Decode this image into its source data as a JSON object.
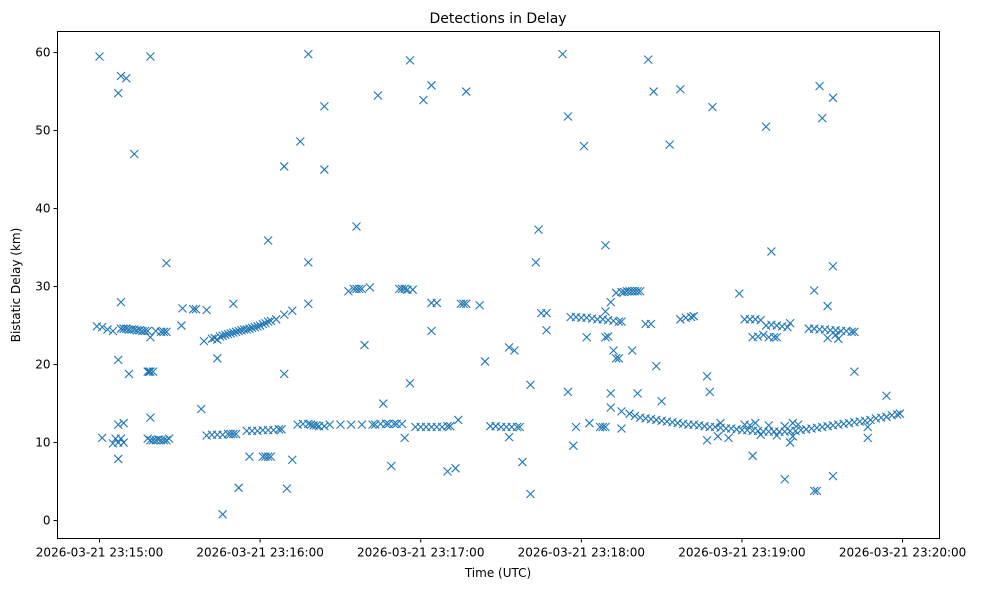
{
  "chart_data": {
    "type": "scatter",
    "title": "Detections in Delay",
    "xlabel": "Time (UTC)",
    "ylabel": "Bistatic Delay (km)",
    "x_units": "seconds since 2026-03-21 23:15:00",
    "xlim": [
      -15.7,
      313.8
    ],
    "ylim": [
      -2.3,
      62.7
    ],
    "grid": false,
    "marker": "x",
    "color": "#1f77b4",
    "xticks": [
      {
        "value": 0,
        "label": "2026-03-21 23:15:00"
      },
      {
        "value": 60,
        "label": "2026-03-21 23:16:00"
      },
      {
        "value": 120,
        "label": "2026-03-21 23:17:00"
      },
      {
        "value": 180,
        "label": "2026-03-21 23:18:00"
      },
      {
        "value": 240,
        "label": "2026-03-21 23:19:00"
      },
      {
        "value": 300,
        "label": "2026-03-21 23:20:00"
      }
    ],
    "yticks": [
      {
        "value": 0,
        "label": "0"
      },
      {
        "value": 10,
        "label": "10"
      },
      {
        "value": 20,
        "label": "20"
      },
      {
        "value": 30,
        "label": "30"
      },
      {
        "value": 40,
        "label": "40"
      },
      {
        "value": 50,
        "label": "50"
      },
      {
        "value": 60,
        "label": "60"
      }
    ],
    "points": [
      [
        0,
        59.5
      ],
      [
        7,
        54.8
      ],
      [
        8,
        57
      ],
      [
        10,
        56.7
      ],
      [
        13,
        47
      ],
      [
        19,
        59.5
      ],
      [
        78,
        59.8
      ],
      [
        69,
        45.4
      ],
      [
        75,
        48.6
      ],
      [
        78,
        33.1
      ],
      [
        84,
        53.1
      ],
      [
        84,
        45
      ],
      [
        104,
        54.5
      ],
      [
        96,
        37.7
      ],
      [
        116,
        59
      ],
      [
        121,
        53.9
      ],
      [
        124,
        55.8
      ],
      [
        137,
        55
      ],
      [
        173,
        59.8
      ],
      [
        175,
        51.8
      ],
      [
        181,
        48
      ],
      [
        205,
        59.1
      ],
      [
        207,
        55
      ],
      [
        213,
        48.2
      ],
      [
        217,
        55.3
      ],
      [
        229,
        53
      ],
      [
        249,
        50.5
      ],
      [
        269,
        55.7
      ],
      [
        270,
        51.6
      ],
      [
        274,
        54.2
      ],
      [
        25,
        33
      ],
      [
        63,
        35.9
      ],
      [
        164,
        37.3
      ],
      [
        163,
        33.1
      ],
      [
        189,
        35.3
      ],
      [
        251,
        34.5
      ],
      [
        274,
        32.6
      ],
      [
        272,
        27.5
      ],
      [
        -1,
        24.9
      ],
      [
        1,
        24.8
      ],
      [
        3,
        24.5
      ],
      [
        5,
        24.3
      ],
      [
        8,
        24.6
      ],
      [
        9,
        24.6
      ],
      [
        10,
        24.6
      ],
      [
        11,
        24.5
      ],
      [
        12,
        24.5
      ],
      [
        13,
        24.5
      ],
      [
        14,
        24.4
      ],
      [
        15,
        24.4
      ],
      [
        16,
        24.3
      ],
      [
        17,
        24.3
      ],
      [
        18,
        24.3
      ],
      [
        21,
        24.3
      ],
      [
        23,
        24.2
      ],
      [
        24,
        24.2
      ],
      [
        25,
        24.2
      ],
      [
        8,
        28
      ],
      [
        7,
        20.6
      ],
      [
        11,
        18.8
      ],
      [
        19,
        23.5
      ],
      [
        18,
        19.1
      ],
      [
        18.5,
        19.1
      ],
      [
        19,
        19.1
      ],
      [
        20,
        19.1
      ],
      [
        1,
        10.6
      ],
      [
        5,
        9.9
      ],
      [
        6,
        10.5
      ],
      [
        7,
        10
      ],
      [
        7,
        12.3
      ],
      [
        8,
        10.5
      ],
      [
        9,
        12.5
      ],
      [
        9,
        10
      ],
      [
        7,
        7.9
      ],
      [
        18,
        10.5
      ],
      [
        19,
        13.2
      ],
      [
        19,
        10.3
      ],
      [
        20,
        10.3
      ],
      [
        21,
        10.3
      ],
      [
        22,
        10.4
      ],
      [
        23,
        10.3
      ],
      [
        24,
        10.3
      ],
      [
        25,
        10.3
      ],
      [
        26,
        10.5
      ],
      [
        31,
        27.2
      ],
      [
        30.6,
        25
      ],
      [
        35,
        27.1
      ],
      [
        36,
        27.1
      ],
      [
        40,
        27
      ],
      [
        38,
        14.3
      ],
      [
        39,
        23
      ],
      [
        42,
        23.3
      ],
      [
        43,
        23.4
      ],
      [
        44,
        23.2
      ],
      [
        45,
        23.6
      ],
      [
        46,
        23.7
      ],
      [
        47,
        23.8
      ],
      [
        48,
        23.9
      ],
      [
        49,
        24
      ],
      [
        50,
        24.1
      ],
      [
        51,
        24.2
      ],
      [
        52,
        24.3
      ],
      [
        53,
        24.4
      ],
      [
        54,
        24.5
      ],
      [
        55,
        24.5
      ],
      [
        56,
        24.6
      ],
      [
        57,
        24.7
      ],
      [
        58,
        24.8
      ],
      [
        59,
        24.9
      ],
      [
        60,
        25
      ],
      [
        61,
        25.2
      ],
      [
        62,
        25.3
      ],
      [
        63,
        25.5
      ],
      [
        64,
        25.6
      ],
      [
        66,
        25.8
      ],
      [
        69,
        26.4
      ],
      [
        72,
        26.9
      ],
      [
        78,
        27.8
      ],
      [
        50,
        27.8
      ],
      [
        44,
        20.8
      ],
      [
        40,
        10.9
      ],
      [
        42,
        11
      ],
      [
        44,
        11
      ],
      [
        46,
        11
      ],
      [
        48,
        11.1
      ],
      [
        49,
        11.1
      ],
      [
        50,
        11.1
      ],
      [
        51,
        11.1
      ],
      [
        55,
        11.5
      ],
      [
        57,
        11.5
      ],
      [
        59,
        11.5
      ],
      [
        61,
        11.6
      ],
      [
        63,
        11.6
      ],
      [
        65,
        11.6
      ],
      [
        67,
        11.7
      ],
      [
        68,
        11.7
      ],
      [
        56,
        8.2
      ],
      [
        61,
        8.2
      ],
      [
        62,
        8.2
      ],
      [
        63,
        8.2
      ],
      [
        64,
        8.2
      ],
      [
        46,
        0.8
      ],
      [
        52,
        4.2
      ],
      [
        70,
        4.1
      ],
      [
        72,
        7.8
      ],
      [
        69,
        18.8
      ],
      [
        74,
        12.3
      ],
      [
        76,
        12.4
      ],
      [
        78,
        12.4
      ],
      [
        79,
        12.3
      ],
      [
        80,
        12.2
      ],
      [
        81,
        12.2
      ],
      [
        82,
        12.1
      ],
      [
        84,
        12.1
      ],
      [
        86,
        12.3
      ],
      [
        90,
        12.3
      ],
      [
        94,
        12.3
      ],
      [
        98,
        12.3
      ],
      [
        102,
        12.3
      ],
      [
        103,
        12.3
      ],
      [
        105,
        12.4
      ],
      [
        107,
        12.4
      ],
      [
        108,
        12.4
      ],
      [
        110,
        12.4
      ],
      [
        111,
        12.4
      ],
      [
        113,
        12.4
      ],
      [
        106,
        15
      ],
      [
        109,
        7
      ],
      [
        114,
        10.6
      ],
      [
        116,
        17.6
      ],
      [
        93,
        29.4
      ],
      [
        95,
        29.7
      ],
      [
        96,
        29.7
      ],
      [
        97,
        29.7
      ],
      [
        98,
        29.7
      ],
      [
        101,
        29.9
      ],
      [
        99,
        22.5
      ],
      [
        112,
        29.7
      ],
      [
        113,
        29.7
      ],
      [
        114,
        29.7
      ],
      [
        115,
        29.6
      ],
      [
        117,
        29.6
      ],
      [
        124,
        27.9
      ],
      [
        126,
        27.9
      ],
      [
        124,
        24.3
      ],
      [
        135,
        27.8
      ],
      [
        136,
        27.8
      ],
      [
        137,
        27.8
      ],
      [
        142,
        27.6
      ],
      [
        118,
        12
      ],
      [
        120,
        12
      ],
      [
        122,
        12
      ],
      [
        124,
        12
      ],
      [
        126,
        12
      ],
      [
        128,
        12
      ],
      [
        130,
        12.1
      ],
      [
        131,
        12.1
      ],
      [
        130,
        6.3
      ],
      [
        133,
        6.7
      ],
      [
        134,
        12.9
      ],
      [
        144,
        20.4
      ],
      [
        146,
        12.1
      ],
      [
        148,
        12.1
      ],
      [
        150,
        12
      ],
      [
        152,
        12
      ],
      [
        154,
        12
      ],
      [
        156,
        12
      ],
      [
        157,
        12
      ],
      [
        153,
        22.2
      ],
      [
        155,
        21.8
      ],
      [
        153,
        10.7
      ],
      [
        158,
        7.5
      ],
      [
        161,
        3.4
      ],
      [
        161,
        17.4
      ],
      [
        165,
        26.6
      ],
      [
        167,
        26.6
      ],
      [
        167,
        24.4
      ],
      [
        176,
        26.1
      ],
      [
        178,
        26.1
      ],
      [
        180,
        26
      ],
      [
        182,
        26
      ],
      [
        184,
        25.9
      ],
      [
        186,
        25.8
      ],
      [
        188,
        25.8
      ],
      [
        190,
        25.7
      ],
      [
        192,
        25.6
      ],
      [
        194,
        25.5
      ],
      [
        195,
        25.5
      ],
      [
        175,
        16.5
      ],
      [
        177,
        9.6
      ],
      [
        178,
        12
      ],
      [
        182,
        23.5
      ],
      [
        183,
        12.5
      ],
      [
        187,
        12
      ],
      [
        188,
        12
      ],
      [
        189,
        12
      ],
      [
        189,
        23.5
      ],
      [
        190,
        23.6
      ],
      [
        189,
        26.8
      ],
      [
        191,
        28
      ],
      [
        191,
        14.5
      ],
      [
        191,
        16.3
      ],
      [
        192,
        21.8
      ],
      [
        194,
        20.8
      ],
      [
        193,
        20.8
      ],
      [
        195,
        14
      ],
      [
        195,
        11.8
      ],
      [
        198,
        13.7
      ],
      [
        199,
        21.8
      ],
      [
        193,
        29.2
      ],
      [
        195,
        29.3
      ],
      [
        196,
        29.3
      ],
      [
        197,
        29.4
      ],
      [
        198,
        29.4
      ],
      [
        199,
        29.4
      ],
      [
        200,
        29.4
      ],
      [
        201,
        29.4
      ],
      [
        202,
        29.4
      ],
      [
        201,
        16.3
      ],
      [
        204,
        25.2
      ],
      [
        206,
        25.2
      ],
      [
        208,
        19.8
      ],
      [
        210,
        15.3
      ],
      [
        200,
        13.4
      ],
      [
        202,
        13.2
      ],
      [
        204,
        13.1
      ],
      [
        206,
        13
      ],
      [
        208,
        12.9
      ],
      [
        210,
        12.8
      ],
      [
        212,
        12.7
      ],
      [
        214,
        12.6
      ],
      [
        216,
        12.5
      ],
      [
        218,
        12.4
      ],
      [
        220,
        12.3
      ],
      [
        222,
        12.3
      ],
      [
        224,
        12.2
      ],
      [
        226,
        12.1
      ],
      [
        228,
        12
      ],
      [
        230,
        12
      ],
      [
        232,
        11.9
      ],
      [
        234,
        11.8
      ],
      [
        236,
        11.8
      ],
      [
        238,
        11.7
      ],
      [
        240,
        11.6
      ],
      [
        242,
        11.6
      ],
      [
        244,
        11.5
      ],
      [
        246,
        11.5
      ],
      [
        248,
        11.4
      ],
      [
        250,
        11.4
      ],
      [
        252,
        11.4
      ],
      [
        254,
        11.4
      ],
      [
        256,
        11.4
      ],
      [
        258,
        11.5
      ],
      [
        260,
        11.5
      ],
      [
        262,
        11.6
      ],
      [
        264,
        11.7
      ],
      [
        266,
        11.8
      ],
      [
        268,
        11.9
      ],
      [
        270,
        12
      ],
      [
        272,
        12.1
      ],
      [
        274,
        12.2
      ],
      [
        276,
        12.3
      ],
      [
        278,
        12.4
      ],
      [
        280,
        12.5
      ],
      [
        282,
        12.6
      ],
      [
        284,
        12.7
      ],
      [
        286,
        12.8
      ],
      [
        288,
        12.9
      ],
      [
        290,
        13.1
      ],
      [
        292,
        13.2
      ],
      [
        294,
        13.3
      ],
      [
        296,
        13.5
      ],
      [
        298,
        13.6
      ],
      [
        299,
        13.7
      ],
      [
        241,
        12.3
      ],
      [
        243,
        12.2
      ],
      [
        245,
        12.5
      ],
      [
        247,
        11
      ],
      [
        250,
        12.2
      ],
      [
        253,
        10.9
      ],
      [
        256,
        12.1
      ],
      [
        259,
        10.8
      ],
      [
        261,
        12.3
      ],
      [
        217,
        25.8
      ],
      [
        219,
        26
      ],
      [
        221,
        26.1
      ],
      [
        222,
        26.2
      ],
      [
        227,
        18.5
      ],
      [
        228,
        16.5
      ],
      [
        227,
        10.3
      ],
      [
        231,
        10.8
      ],
      [
        232,
        12.5
      ],
      [
        235,
        10.6
      ],
      [
        239,
        29.1
      ],
      [
        241,
        25.8
      ],
      [
        243,
        25.8
      ],
      [
        245,
        25.8
      ],
      [
        247,
        25.7
      ],
      [
        244,
        23.5
      ],
      [
        246,
        23.6
      ],
      [
        248,
        23.8
      ],
      [
        250,
        23.5
      ],
      [
        252,
        23.5
      ],
      [
        253,
        23.5
      ],
      [
        249,
        25
      ],
      [
        251,
        25.1
      ],
      [
        253,
        25
      ],
      [
        255,
        24.9
      ],
      [
        257,
        24.8
      ],
      [
        258,
        25.3
      ],
      [
        244,
        8.3
      ],
      [
        256,
        5.3
      ],
      [
        258,
        10
      ],
      [
        259,
        12.5
      ],
      [
        267,
        29.5
      ],
      [
        265,
        24.6
      ],
      [
        267,
        24.6
      ],
      [
        269,
        24.5
      ],
      [
        271,
        24.5
      ],
      [
        273,
        24.4
      ],
      [
        275,
        24.4
      ],
      [
        277,
        24.3
      ],
      [
        279,
        24.3
      ],
      [
        272,
        23.4
      ],
      [
        275,
        23.8
      ],
      [
        276,
        23.3
      ],
      [
        281,
        24.2
      ],
      [
        282,
        24.2
      ],
      [
        282,
        19.1
      ],
      [
        267,
        3.8
      ],
      [
        268,
        3.8
      ],
      [
        274,
        5.7
      ],
      [
        287,
        10.6
      ],
      [
        287,
        12
      ],
      [
        294,
        16
      ]
    ]
  }
}
